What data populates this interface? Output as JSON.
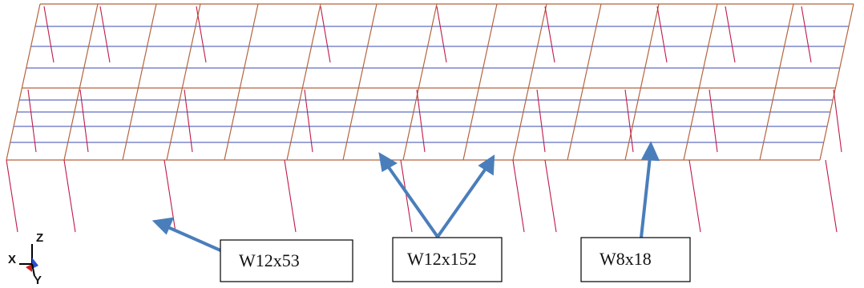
{
  "labels": [
    {
      "text": "W12x53"
    },
    {
      "text": "W12x152"
    },
    {
      "text": "W8x18"
    }
  ],
  "axes": {
    "z": "Z",
    "x": "X",
    "y": "Y"
  }
}
